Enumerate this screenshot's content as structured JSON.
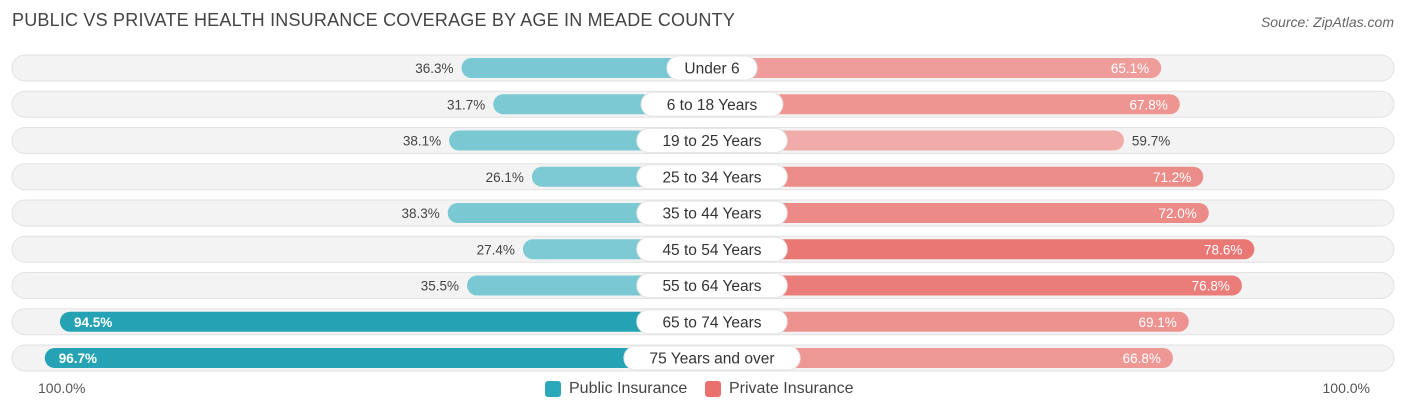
{
  "chart_data": {
    "type": "bar",
    "orientation": "horizontal-diverging",
    "title": "PUBLIC VS PRIVATE HEALTH INSURANCE COVERAGE BY AGE IN MEADE COUNTY",
    "source": "Source: ZipAtlas.com",
    "categories": [
      "Under 6",
      "6 to 18 Years",
      "19 to 25 Years",
      "25 to 34 Years",
      "35 to 44 Years",
      "45 to 54 Years",
      "55 to 64 Years",
      "65 to 74 Years",
      "75 Years and over"
    ],
    "series": [
      {
        "name": "Public Insurance",
        "color": "#2aa7b8",
        "values": [
          36.3,
          31.7,
          38.1,
          26.1,
          38.3,
          27.4,
          35.5,
          94.5,
          96.7
        ],
        "labels": [
          "36.3%",
          "31.7%",
          "38.1%",
          "26.1%",
          "38.3%",
          "27.4%",
          "35.5%",
          "94.5%",
          "96.7%"
        ]
      },
      {
        "name": "Private Insurance",
        "color": "#e8716d",
        "values": [
          65.1,
          67.8,
          59.7,
          71.2,
          72.0,
          78.6,
          76.8,
          69.1,
          66.8
        ],
        "labels": [
          "65.1%",
          "67.8%",
          "59.7%",
          "71.2%",
          "72.0%",
          "78.6%",
          "76.8%",
          "69.1%",
          "66.8%"
        ]
      }
    ],
    "axis": {
      "left_label": "100.0%",
      "right_label": "100.0%",
      "min": 0,
      "max": 100
    },
    "legend_position": "bottom-center"
  }
}
